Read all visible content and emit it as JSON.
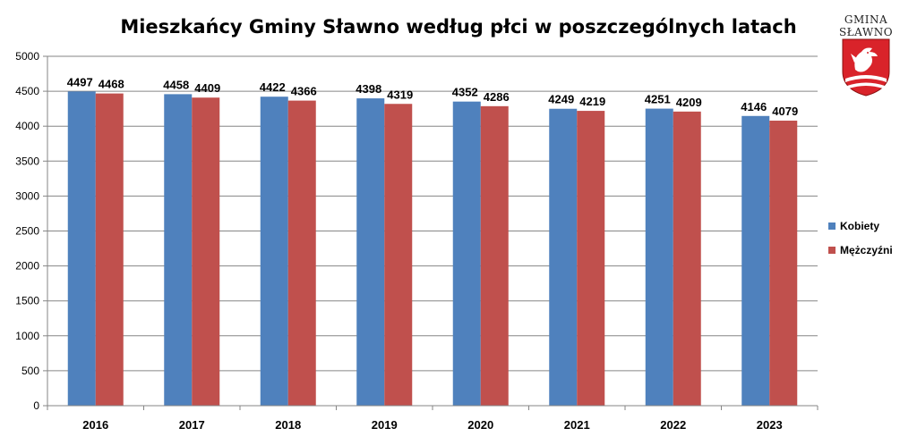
{
  "logo": {
    "line1": "GMINA",
    "line2": "SŁAWNO"
  },
  "chart_data": {
    "type": "bar",
    "title": "Mieszkańcy Gminy Sławno według płci w poszczególnych latach",
    "categories": [
      "2016",
      "2017",
      "2018",
      "2019",
      "2020",
      "2021",
      "2022",
      "2023"
    ],
    "series": [
      {
        "name": "Kobiety",
        "color": "#4f81bd",
        "values": [
          4497,
          4458,
          4422,
          4398,
          4352,
          4249,
          4251,
          4146
        ]
      },
      {
        "name": "Mężczyźni",
        "color": "#c0504d",
        "values": [
          4468,
          4409,
          4366,
          4319,
          4286,
          4219,
          4209,
          4079
        ]
      }
    ],
    "ylim": [
      0,
      5000
    ],
    "yticks": [
      0,
      500,
      1000,
      1500,
      2000,
      2500,
      3000,
      3500,
      4000,
      4500,
      5000
    ],
    "grid": true,
    "legend": "right"
  }
}
